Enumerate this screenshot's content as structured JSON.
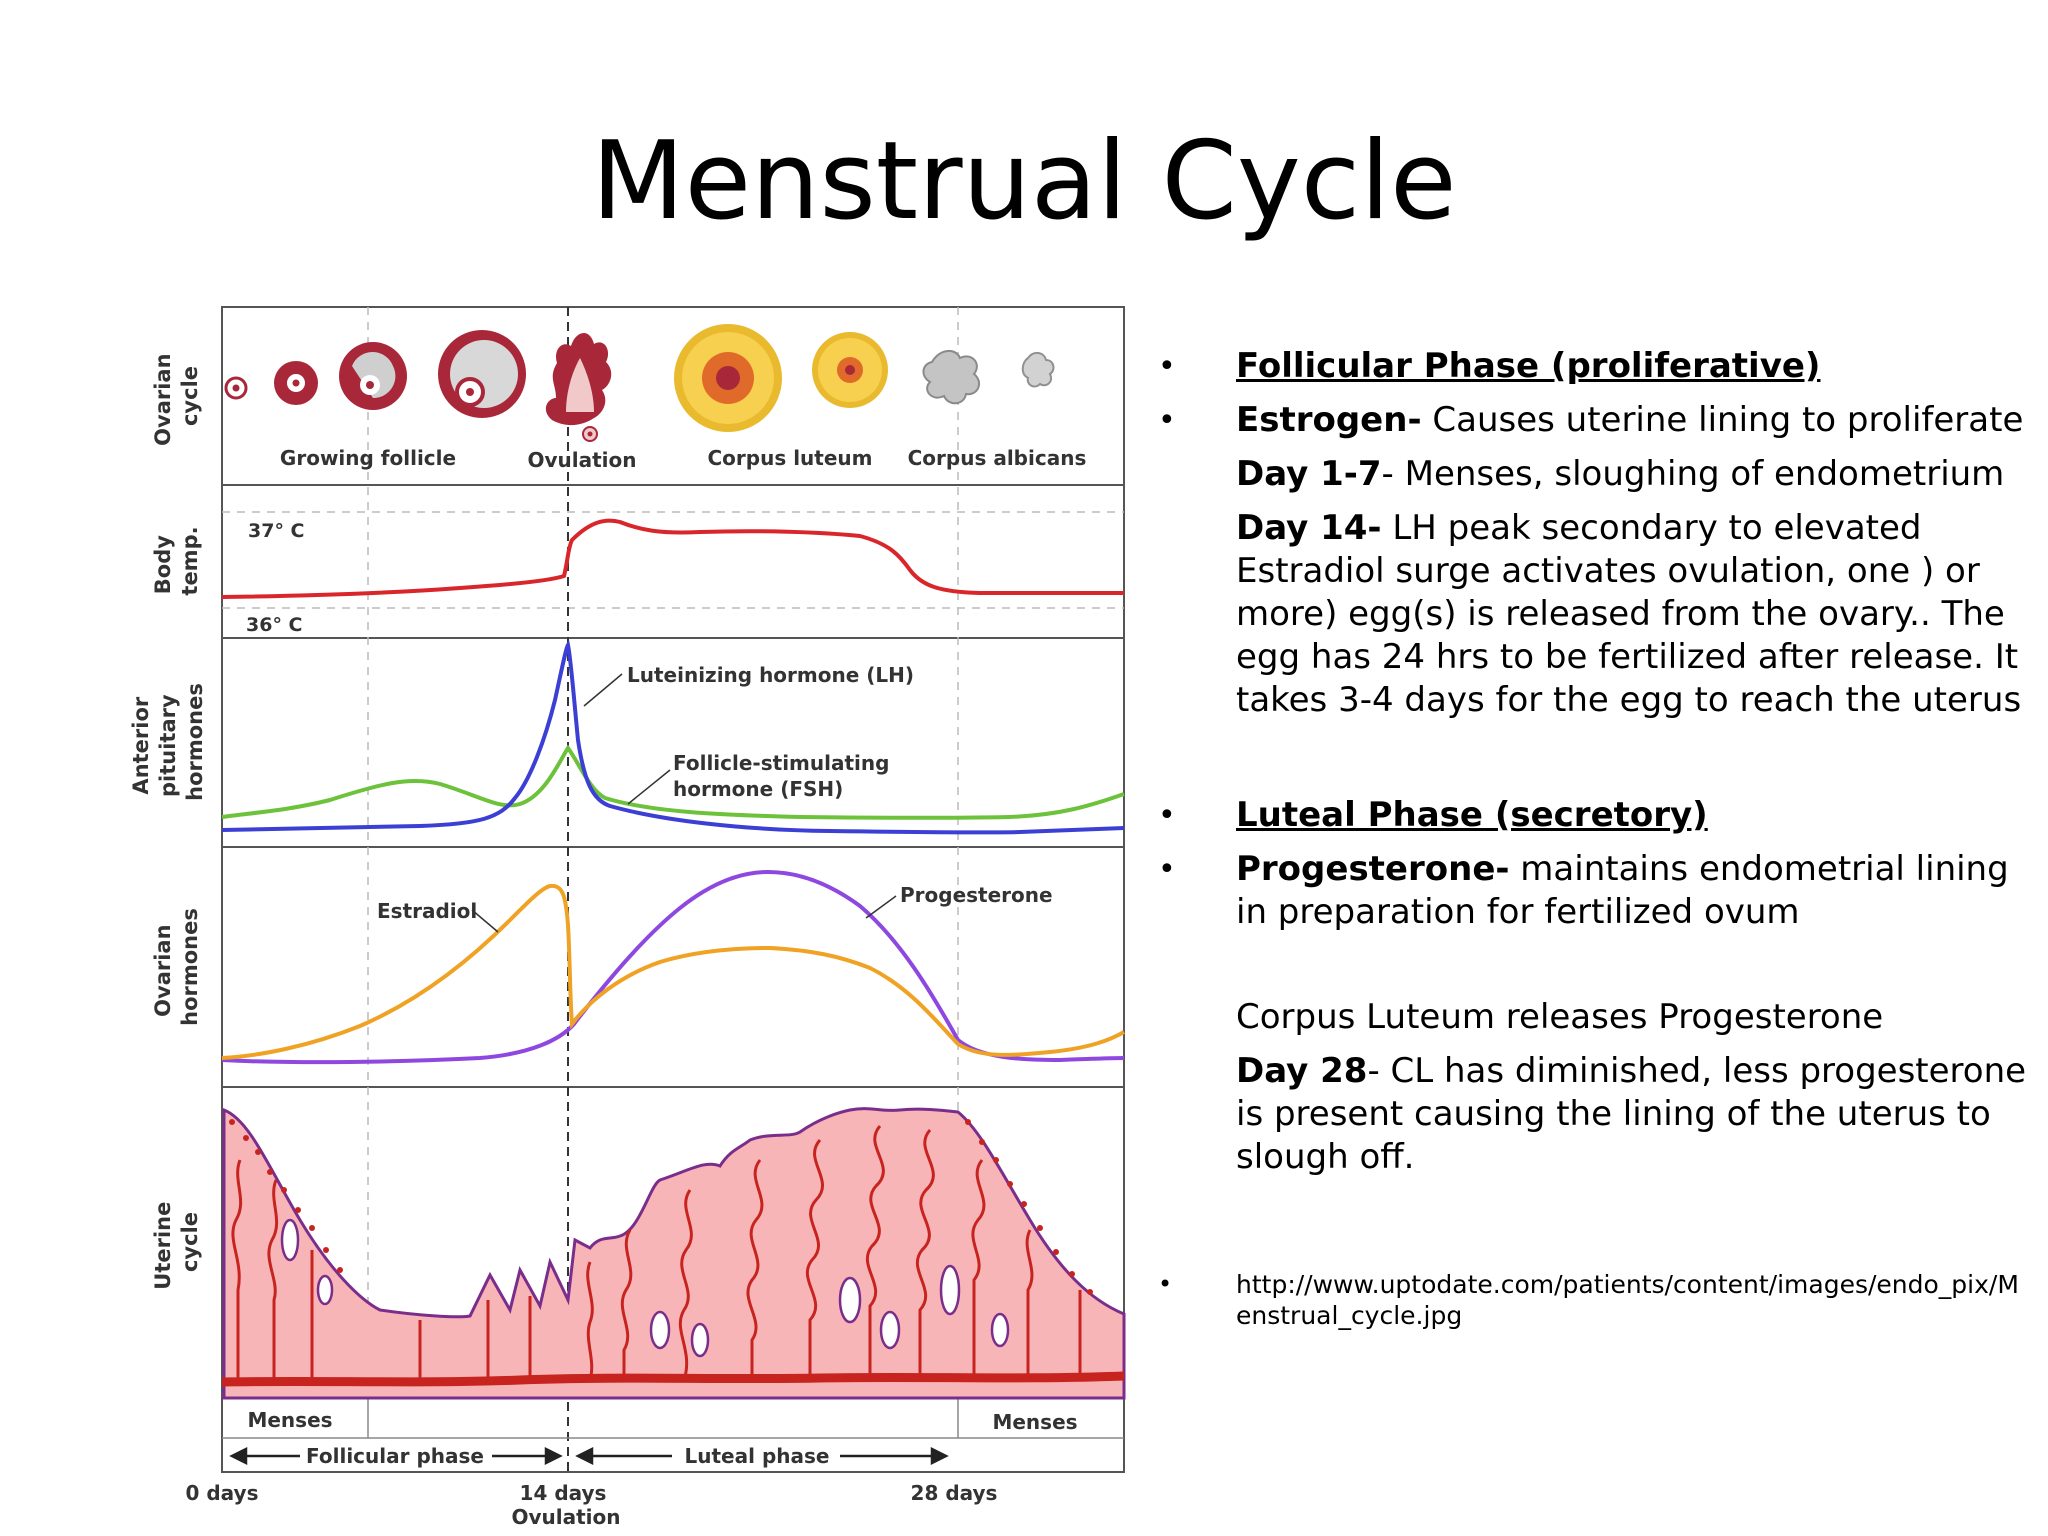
{
  "title": "Menstrual Cycle",
  "diagram": {
    "row_labels": {
      "ovarian_cycle": [
        "Ovarian",
        "cycle"
      ],
      "body_temp": [
        "Body",
        "temp."
      ],
      "pituitary": [
        "Anterior",
        "pituitary",
        "hormones"
      ],
      "ovarian_hormones": [
        "Ovarian",
        "hormones"
      ],
      "uterine": [
        "Uterine",
        "cycle"
      ]
    },
    "stages": [
      "Growing follicle",
      "Ovulation",
      "Corpus luteum",
      "Corpus albicans"
    ],
    "temp_high": "37° C",
    "temp_low": "36° C",
    "lh_label": "Luteinizing hormone (LH)",
    "fsh_label": [
      "Follicle-stimulating",
      "hormone (FSH)"
    ],
    "estradiol_label": "Estradiol",
    "progesterone_label": "Progesterone",
    "menses_left": "Menses",
    "menses_right": "Menses",
    "follicular_phase": "Follicular phase",
    "luteal_phase": "Luteal phase",
    "day0": "0 days",
    "day14": "14 days",
    "ovulation_axis": "Ovulation",
    "day28": "28 days",
    "colors": {
      "temperature": "#d9262b",
      "lh": "#3b3fd4",
      "fsh": "#6cc23a",
      "estradiol": "#f0a224",
      "progesterone": "#8e48e0",
      "endometrium_fill": "#f7b5b8",
      "vessel": "#c8241f",
      "gland": "#7a2d8a",
      "follicle": "#a8283a",
      "corpus_luteum": "#f6d04e"
    }
  },
  "bullets": {
    "follicular_heading": "Follicular Phase (proliferative)",
    "estrogen_label": "Estrogen-",
    "estrogen_text": " Causes uterine lining to proliferate",
    "day1_7_label": "Day 1-7",
    "day1_7_text": "- Menses, sloughing of endometrium",
    "day14_label": "Day 14-",
    "day14_text": " LH peak secondary to elevated Estradiol surge activates ovulation,  one ) or more) egg(s) is released from the ovary..  The egg has 24 hrs to be fertilized after release. It takes 3-4 days for the egg to reach the uterus",
    "luteal_heading": "Luteal Phase (secretory)",
    "progesterone_label": "Progesterone-",
    "progesterone_text": " maintains endometrial lining in preparation for fertilized ovum",
    "corpus_text": "Corpus Luteum releases Progesterone",
    "day28_label": "Day 28",
    "day28_text": "- CL has diminished, less progesterone is present causing the lining of the uterus to slough off.",
    "source_url": "http://www.uptodate.com/patients/content/images/endo_pix/Menstrual_cycle.jpg"
  }
}
